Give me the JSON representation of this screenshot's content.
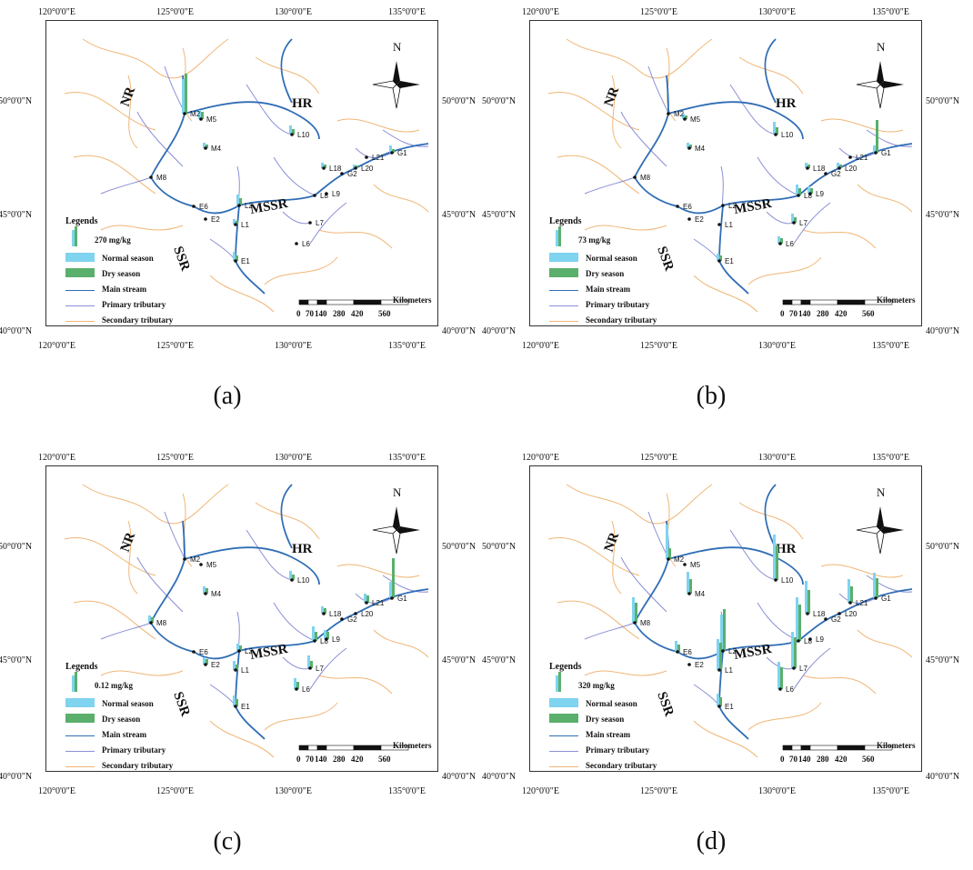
{
  "colors": {
    "main_stream": "#2f6db5",
    "primary_tributary": "#8a8fd6",
    "secondary_tributary": "#f0b676",
    "normal_season": "#7fd4ef",
    "dry_season": "#5aaf6c"
  },
  "axes": {
    "lon_labels": [
      "120°0'0\"E",
      "125°0'0\"E",
      "130°0'0\"E",
      "135°0'0\"E"
    ],
    "lat_labels": [
      "50°0'0\"N",
      "45°0'0\"N",
      "40°0'0\"N"
    ]
  },
  "legend": {
    "title": "Legends",
    "normal": "Normal season",
    "dry": "Dry season",
    "main": "Main stream",
    "primary": "Primary tributary",
    "secondary": "Secondary tributary"
  },
  "scale_bar": {
    "unit": "Kilometers",
    "ticks": [
      "0",
      "70",
      "140",
      "280",
      "420",
      "560"
    ]
  },
  "north": "N",
  "regions": [
    "NR",
    "HR",
    "MSSR",
    "SSR"
  ],
  "panels": [
    {
      "caption": "(a)",
      "legend_value": "270 mg/kg"
    },
    {
      "caption": "(b)",
      "legend_value": "73 mg/kg"
    },
    {
      "caption": "(c)",
      "legend_value": "0.12 mg/kg"
    },
    {
      "caption": "(d)",
      "legend_value": "320 mg/kg"
    }
  ],
  "stations": [
    "M2",
    "M5",
    "M4",
    "M8",
    "E6",
    "E2",
    "E1",
    "L1",
    "L2",
    "L6",
    "L7",
    "L8",
    "L9",
    "L10",
    "L18",
    "L20",
    "L21",
    "G1",
    "G2"
  ]
}
